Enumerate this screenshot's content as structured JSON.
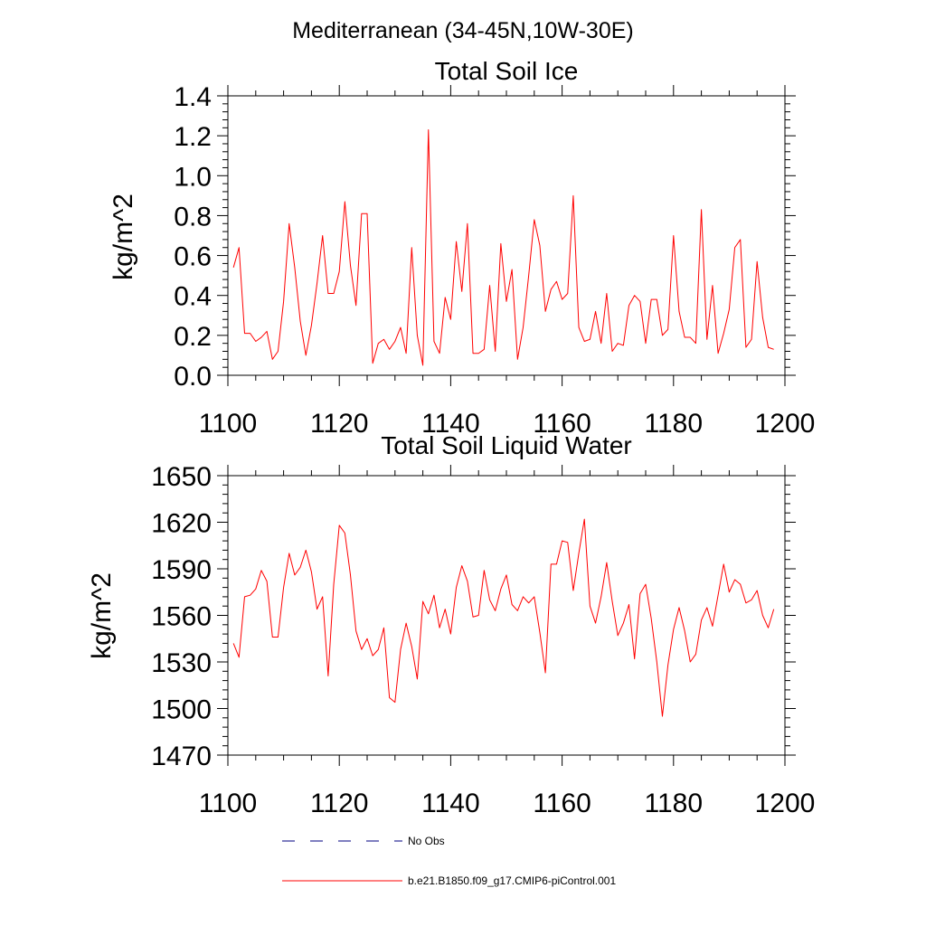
{
  "title": "Mediterranean (34-45N,10W-30E)",
  "colors": {
    "series": "#ff0000",
    "obs": "#000080",
    "axis": "#000000"
  },
  "legend": [
    {
      "label": "No Obs",
      "style": "dashed",
      "color": "#000080"
    },
    {
      "label": "b.e21.B1850.f09_g17.CMIP6-piControl.001",
      "style": "solid",
      "color": "#ff0000"
    }
  ],
  "chart_data": [
    {
      "type": "line",
      "title": "Total Soil Ice",
      "xlabel": "",
      "ylabel": "kg/m^2",
      "xlim": [
        1100,
        1200
      ],
      "ylim": [
        0.0,
        1.4
      ],
      "x_ticks": [
        1100,
        1120,
        1140,
        1160,
        1180,
        1200
      ],
      "x_tick_labels": [
        "1100",
        "1120",
        "1140",
        "1160",
        "1180",
        "1200"
      ],
      "y_ticks": [
        0.0,
        0.2,
        0.4,
        0.6,
        0.8,
        1.0,
        1.2,
        1.4
      ],
      "y_tick_labels": [
        "0.0",
        "0.2",
        "0.4",
        "0.6",
        "0.8",
        "1.0",
        "1.2",
        "1.4"
      ],
      "x_start": 1101,
      "series": [
        {
          "name": "b.e21.B1850.f09_g17.CMIP6-piControl.001",
          "values": [
            0.54,
            0.64,
            0.21,
            0.21,
            0.17,
            0.19,
            0.22,
            0.08,
            0.12,
            0.37,
            0.76,
            0.54,
            0.27,
            0.1,
            0.25,
            0.46,
            0.7,
            0.41,
            0.41,
            0.52,
            0.87,
            0.55,
            0.35,
            0.81,
            0.81,
            0.06,
            0.16,
            0.18,
            0.13,
            0.17,
            0.24,
            0.11,
            0.64,
            0.2,
            0.05,
            1.23,
            0.17,
            0.11,
            0.39,
            0.28,
            0.67,
            0.42,
            0.76,
            0.11,
            0.11,
            0.13,
            0.45,
            0.12,
            0.66,
            0.37,
            0.53,
            0.08,
            0.24,
            0.5,
            0.78,
            0.65,
            0.32,
            0.43,
            0.47,
            0.38,
            0.41,
            0.9,
            0.24,
            0.17,
            0.18,
            0.32,
            0.16,
            0.41,
            0.12,
            0.16,
            0.15,
            0.35,
            0.4,
            0.37,
            0.16,
            0.38,
            0.38,
            0.2,
            0.23,
            0.7,
            0.32,
            0.19,
            0.19,
            0.16,
            0.83,
            0.18,
            0.45,
            0.11,
            0.21,
            0.33,
            0.64,
            0.68,
            0.14,
            0.18,
            0.57,
            0.29,
            0.14,
            0.13
          ]
        }
      ]
    },
    {
      "type": "line",
      "title": "Total Soil Liquid Water",
      "xlabel": "",
      "ylabel": "kg/m^2",
      "xlim": [
        1100,
        1200
      ],
      "ylim": [
        1470,
        1650
      ],
      "x_ticks": [
        1100,
        1120,
        1140,
        1160,
        1180,
        1200
      ],
      "x_tick_labels": [
        "1100",
        "1120",
        "1140",
        "1160",
        "1180",
        "1200"
      ],
      "y_ticks": [
        1470,
        1500,
        1530,
        1560,
        1590,
        1620,
        1650
      ],
      "y_tick_labels": [
        "1470",
        "1500",
        "1530",
        "1560",
        "1590",
        "1620",
        "1650"
      ],
      "x_start": 1101,
      "series": [
        {
          "name": "b.e21.B1850.f09_g17.CMIP6-piControl.001",
          "values": [
            1542,
            1533,
            1572,
            1573,
            1577,
            1589,
            1582,
            1546,
            1546,
            1578,
            1600,
            1586,
            1591,
            1602,
            1588,
            1564,
            1572,
            1521,
            1580,
            1618,
            1613,
            1586,
            1550,
            1538,
            1545,
            1534,
            1538,
            1552,
            1507,
            1504,
            1538,
            1555,
            1540,
            1519,
            1569,
            1561,
            1573,
            1552,
            1564,
            1548,
            1578,
            1592,
            1582,
            1559,
            1560,
            1589,
            1570,
            1563,
            1577,
            1586,
            1567,
            1563,
            1572,
            1568,
            1572,
            1549,
            1523,
            1593,
            1593,
            1608,
            1607,
            1576,
            1600,
            1622,
            1566,
            1555,
            1572,
            1594,
            1569,
            1547,
            1555,
            1567,
            1532,
            1574,
            1580,
            1558,
            1530,
            1495,
            1528,
            1551,
            1565,
            1550,
            1530,
            1535,
            1557,
            1565,
            1553,
            1573,
            1593,
            1575,
            1583,
            1580,
            1568,
            1570,
            1576,
            1560,
            1552,
            1564
          ]
        }
      ]
    }
  ]
}
